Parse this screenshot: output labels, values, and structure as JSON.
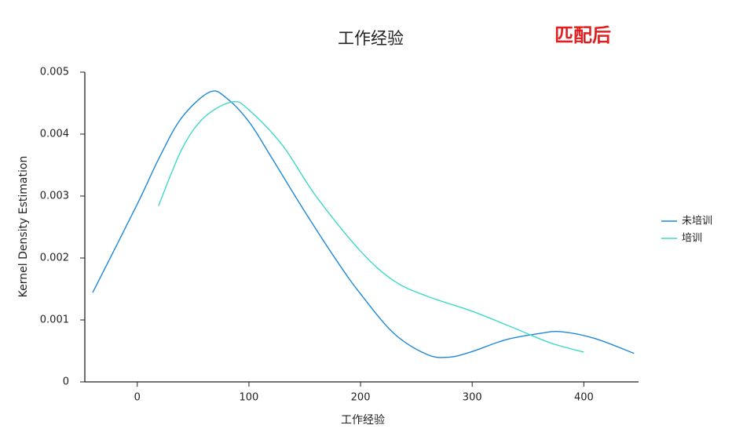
{
  "chart_data": {
    "type": "line",
    "title": "工作经验",
    "annotation": "匹配后",
    "x_label": "工作经验",
    "y_label": "Kernel Density Estimation",
    "xlim": [
      -47,
      449
    ],
    "ylim": [
      0,
      0.005
    ],
    "xticks": [
      0,
      100,
      200,
      300,
      400
    ],
    "yticks": [
      0,
      0.001,
      0.002,
      0.003,
      0.004,
      0.005
    ],
    "legend": "right",
    "series": [
      {
        "name": "未培训",
        "color": "#1e88d8",
        "x": [
          -40,
          0,
          20,
          40,
          65,
          80,
          100,
          120,
          150,
          180,
          200,
          230,
          260,
          280,
          300,
          330,
          360,
          380,
          410,
          445
        ],
        "values": [
          0.00144,
          0.00287,
          0.00363,
          0.00427,
          0.00468,
          0.00458,
          0.0042,
          0.00363,
          0.00275,
          0.00192,
          0.00142,
          0.00078,
          0.00044,
          0.0004,
          0.00049,
          0.00068,
          0.00078,
          0.00081,
          0.0007,
          0.00046
        ]
      },
      {
        "name": "培训",
        "color": "#3fd9c8",
        "x": [
          19,
          40,
          60,
          85,
          100,
          130,
          160,
          200,
          230,
          260,
          300,
          340,
          370,
          400
        ],
        "values": [
          0.00284,
          0.00376,
          0.00427,
          0.00452,
          0.00439,
          0.00382,
          0.003,
          0.00211,
          0.00163,
          0.00138,
          0.00114,
          0.00085,
          0.00063,
          0.00048
        ]
      }
    ]
  }
}
